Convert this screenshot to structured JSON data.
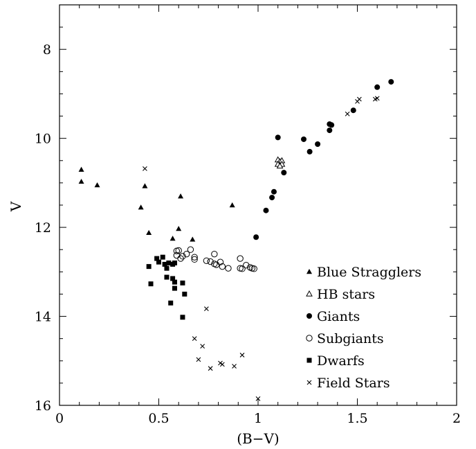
{
  "chart_data": {
    "type": "scatter",
    "xlabel": "(B−V)",
    "ylabel": "V",
    "xlim": [
      0,
      2
    ],
    "ylim": [
      16,
      7
    ],
    "y_inverted": true,
    "grid": false,
    "legend_position": "bottom-right",
    "x_ticks": [
      {
        "value": 0,
        "label": "0"
      },
      {
        "value": 0.5,
        "label": "0.5"
      },
      {
        "value": 1,
        "label": "1"
      },
      {
        "value": 1.5,
        "label": "1.5"
      },
      {
        "value": 2,
        "label": "2"
      }
    ],
    "y_ticks": [
      {
        "value": 8,
        "label": "8"
      },
      {
        "value": 10,
        "label": "10"
      },
      {
        "value": 12,
        "label": "12"
      },
      {
        "value": 14,
        "label": "14"
      },
      {
        "value": 16,
        "label": "16"
      }
    ],
    "series": [
      {
        "name": "Blue Stragglers",
        "marker": "filled-triangle",
        "points": [
          [
            0.11,
            10.7
          ],
          [
            0.11,
            10.97
          ],
          [
            0.19,
            11.05
          ],
          [
            0.41,
            11.55
          ],
          [
            0.43,
            11.07
          ],
          [
            0.45,
            12.12
          ],
          [
            0.57,
            12.25
          ],
          [
            0.61,
            11.3
          ],
          [
            0.6,
            12.03
          ],
          [
            0.67,
            12.27
          ],
          [
            0.87,
            11.5
          ]
        ]
      },
      {
        "name": "HB stars",
        "marker": "open-triangle",
        "points": [
          [
            1.1,
            10.48
          ],
          [
            1.11,
            10.52
          ],
          [
            1.12,
            10.5
          ],
          [
            1.1,
            10.58
          ],
          [
            1.12,
            10.58
          ],
          [
            1.11,
            10.62
          ]
        ]
      },
      {
        "name": "Giants",
        "marker": "filled-circle",
        "points": [
          [
            0.99,
            12.22
          ],
          [
            1.04,
            11.62
          ],
          [
            1.07,
            11.33
          ],
          [
            1.08,
            11.2
          ],
          [
            1.1,
            9.98
          ],
          [
            1.13,
            10.77
          ],
          [
            1.23,
            10.02
          ],
          [
            1.26,
            10.3
          ],
          [
            1.3,
            10.13
          ],
          [
            1.36,
            9.82
          ],
          [
            1.36,
            9.68
          ],
          [
            1.37,
            9.7
          ],
          [
            1.48,
            9.37
          ],
          [
            1.6,
            8.85
          ],
          [
            1.67,
            8.73
          ]
        ]
      },
      {
        "name": "Subgiants",
        "marker": "open-circle",
        "points": [
          [
            0.59,
            12.53
          ],
          [
            0.6,
            12.52
          ],
          [
            0.59,
            12.63
          ],
          [
            0.61,
            12.7
          ],
          [
            0.62,
            12.65
          ],
          [
            0.64,
            12.6
          ],
          [
            0.66,
            12.5
          ],
          [
            0.68,
            12.67
          ],
          [
            0.68,
            12.72
          ],
          [
            0.74,
            12.75
          ],
          [
            0.76,
            12.77
          ],
          [
            0.78,
            12.82
          ],
          [
            0.78,
            12.6
          ],
          [
            0.79,
            12.84
          ],
          [
            0.81,
            12.78
          ],
          [
            0.82,
            12.88
          ],
          [
            0.85,
            12.92
          ],
          [
            0.91,
            12.7
          ],
          [
            0.91,
            12.92
          ],
          [
            0.92,
            12.93
          ],
          [
            0.94,
            12.85
          ],
          [
            0.96,
            12.9
          ],
          [
            0.97,
            12.92
          ],
          [
            0.98,
            12.93
          ]
        ]
      },
      {
        "name": "Dwarfs",
        "marker": "filled-square",
        "points": [
          [
            0.45,
            12.88
          ],
          [
            0.46,
            13.27
          ],
          [
            0.49,
            12.7
          ],
          [
            0.5,
            12.78
          ],
          [
            0.52,
            12.67
          ],
          [
            0.53,
            12.83
          ],
          [
            0.54,
            12.92
          ],
          [
            0.54,
            13.12
          ],
          [
            0.55,
            12.8
          ],
          [
            0.56,
            13.7
          ],
          [
            0.57,
            12.83
          ],
          [
            0.57,
            13.15
          ],
          [
            0.58,
            12.8
          ],
          [
            0.58,
            13.23
          ],
          [
            0.58,
            13.37
          ],
          [
            0.62,
            13.25
          ],
          [
            0.63,
            13.5
          ],
          [
            0.62,
            14.02
          ]
        ]
      },
      {
        "name": "Field Stars",
        "marker": "cross",
        "points": [
          [
            0.43,
            10.68
          ],
          [
            0.74,
            13.83
          ],
          [
            0.68,
            14.5
          ],
          [
            0.7,
            14.97
          ],
          [
            0.72,
            14.67
          ],
          [
            0.76,
            15.17
          ],
          [
            0.81,
            15.05
          ],
          [
            0.82,
            15.08
          ],
          [
            0.88,
            15.12
          ],
          [
            0.92,
            14.87
          ],
          [
            1.0,
            15.85
          ],
          [
            1.45,
            9.45
          ],
          [
            1.5,
            9.17
          ],
          [
            1.51,
            9.12
          ],
          [
            1.59,
            9.12
          ],
          [
            1.6,
            9.1
          ]
        ]
      }
    ]
  }
}
